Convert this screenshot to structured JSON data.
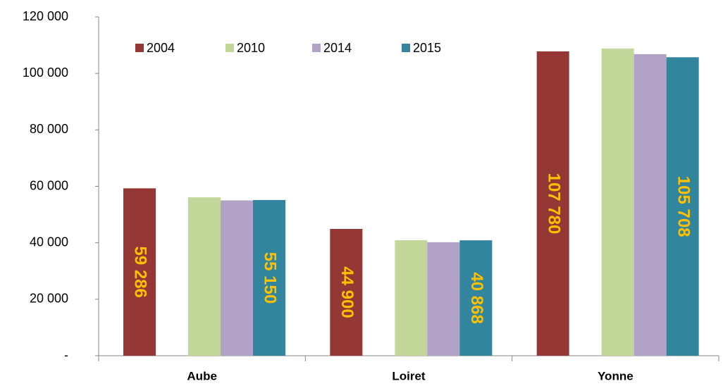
{
  "chart_data": {
    "type": "bar",
    "categories": [
      "Aube",
      "Loiret",
      "Yonne"
    ],
    "series": [
      {
        "name": "2004",
        "color": "#953735",
        "values": [
          59286,
          44900,
          107780
        ],
        "value_labels": [
          "59 286",
          "44 900",
          "107 780"
        ]
      },
      {
        "name": "2010",
        "color": "#c4d79b",
        "values": [
          56100,
          40900,
          108800
        ]
      },
      {
        "name": "2014",
        "color": "#b3a2c7",
        "values": [
          55000,
          40200,
          106800
        ]
      },
      {
        "name": "2015",
        "color": "#31859c",
        "values": [
          55150,
          40868,
          105708
        ],
        "value_labels": [
          "55 150",
          "40 868",
          "105 708"
        ]
      }
    ],
    "ylim": [
      0,
      120000
    ],
    "yticks": [
      {
        "value": 0,
        "label": "-"
      },
      {
        "value": 20000,
        "label": "20 000"
      },
      {
        "value": 40000,
        "label": "40 000"
      },
      {
        "value": 60000,
        "label": "60 000"
      },
      {
        "value": 80000,
        "label": "80 000"
      },
      {
        "value": 100000,
        "label": "100 000"
      },
      {
        "value": 120000,
        "label": "120 000"
      }
    ],
    "legend": "top-left"
  }
}
